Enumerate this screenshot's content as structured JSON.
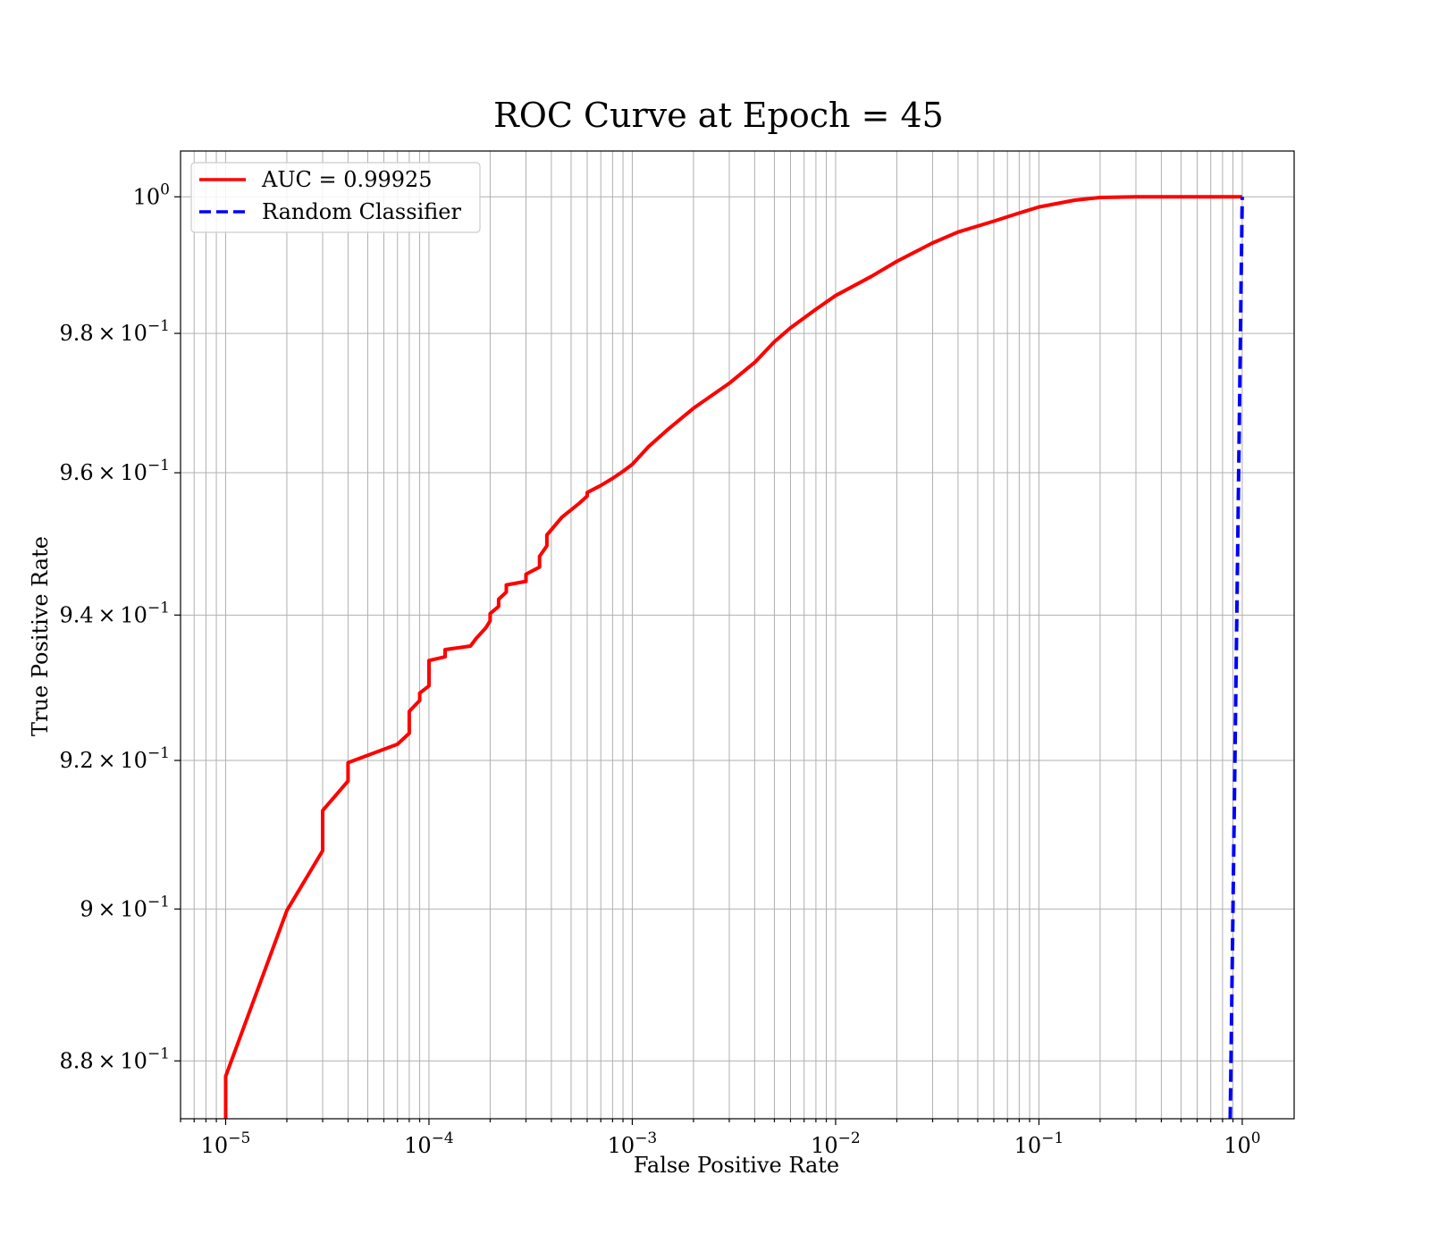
{
  "chart_data": {
    "type": "line",
    "title": "ROC Curve at Epoch = 45",
    "xlabel": "False Positive Rate",
    "ylabel": "True Positive Rate",
    "xscale": "log",
    "yscale": "log",
    "xlim": [
      6e-06,
      1.8
    ],
    "ylim": [
      0.8725,
      1.0068
    ],
    "grid": "both",
    "legend_position": "top-left",
    "x_ticks": [
      {
        "value": 1e-05,
        "base": "10",
        "exp": "−5"
      },
      {
        "value": 0.0001,
        "base": "10",
        "exp": "−4"
      },
      {
        "value": 0.001,
        "base": "10",
        "exp": "−3"
      },
      {
        "value": 0.01,
        "base": "10",
        "exp": "−2"
      },
      {
        "value": 0.1,
        "base": "10",
        "exp": "−1"
      },
      {
        "value": 1,
        "base": "10",
        "exp": "0"
      }
    ],
    "y_ticks": [
      {
        "value": 1.0,
        "mant": "",
        "base": "10",
        "exp": "0"
      },
      {
        "value": 0.98,
        "mant": "9.8",
        "base": "10",
        "exp": "−1"
      },
      {
        "value": 0.96,
        "mant": "9.6",
        "base": "10",
        "exp": "−1"
      },
      {
        "value": 0.94,
        "mant": "9.4",
        "base": "10",
        "exp": "−1"
      },
      {
        "value": 0.92,
        "mant": "9.2",
        "base": "10",
        "exp": "−1"
      },
      {
        "value": 0.9,
        "mant": "9",
        "base": "10",
        "exp": "−1"
      },
      {
        "value": 0.88,
        "mant": "8.8",
        "base": "10",
        "exp": "−1"
      }
    ],
    "series": [
      {
        "name": "AUC = 0.99925",
        "color": "#ff0000",
        "style": "solid",
        "x": [
          1e-05,
          1e-05,
          2e-05,
          3e-05,
          3e-05,
          4e-05,
          4e-05,
          7e-05,
          8e-05,
          8e-05,
          9e-05,
          9e-05,
          0.0001,
          0.0001,
          0.00012,
          0.00012,
          0.00016,
          0.00017,
          0.00019,
          0.0002,
          0.0002,
          0.00022,
          0.00022,
          0.00024,
          0.00024,
          0.0003,
          0.0003,
          0.00035,
          0.00035,
          0.00038,
          0.00038,
          0.00045,
          0.00055,
          0.0006,
          0.0006,
          0.0007,
          0.0008,
          0.0009,
          0.001,
          0.0012,
          0.0015,
          0.002,
          0.003,
          0.004,
          0.005,
          0.006,
          0.008,
          0.01,
          0.015,
          0.02,
          0.03,
          0.04,
          0.06,
          0.08,
          0.1,
          0.15,
          0.2,
          0.3,
          0.5,
          1.0
        ],
        "y": [
          0.8725,
          0.878,
          0.8998,
          0.9078,
          0.9132,
          0.9172,
          0.9197,
          0.9222,
          0.9237,
          0.9267,
          0.9282,
          0.9292,
          0.9302,
          0.9337,
          0.9342,
          0.9352,
          0.9357,
          0.9367,
          0.9382,
          0.9392,
          0.9402,
          0.9412,
          0.9422,
          0.9432,
          0.9442,
          0.9447,
          0.9457,
          0.9467,
          0.9482,
          0.9497,
          0.9512,
          0.9537,
          0.9557,
          0.9567,
          0.9572,
          0.9582,
          0.9592,
          0.9602,
          0.9612,
          0.9637,
          0.9662,
          0.9692,
          0.9728,
          0.9758,
          0.9788,
          0.9808,
          0.9835,
          0.9855,
          0.9883,
          0.9905,
          0.9932,
          0.9948,
          0.9964,
          0.9976,
          0.9985,
          0.9995,
          0.9999,
          1.0,
          1.0,
          1.0
        ]
      },
      {
        "name": "Random Classifier",
        "color": "#0000ff",
        "style": "dashed",
        "x": [
          0.87,
          0.95,
          1.0
        ],
        "y": [
          0.87,
          0.95,
          1.0
        ]
      }
    ]
  }
}
